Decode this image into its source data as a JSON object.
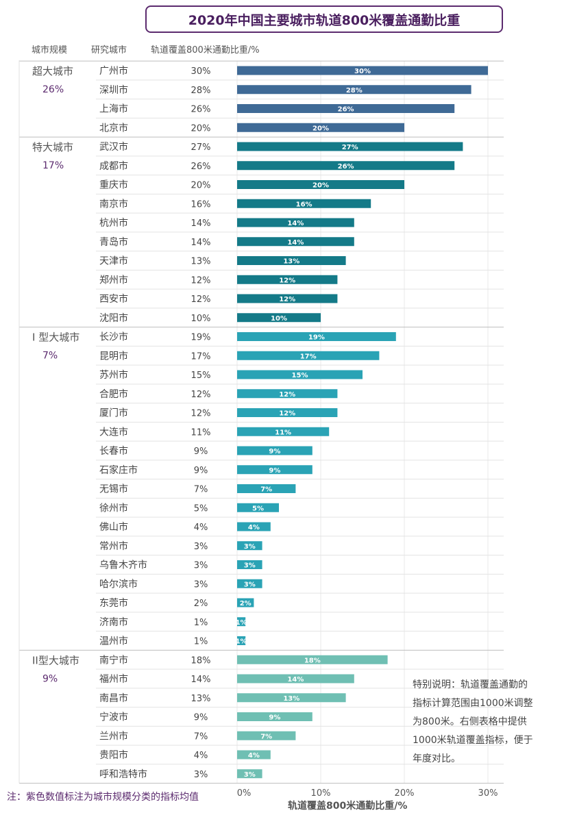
{
  "chart_data": {
    "type": "bar",
    "orientation": "horizontal",
    "title": "2020年中国主要城市轨道800米覆盖通勤比重",
    "headers": {
      "tier": "城市规模",
      "city": "研究城市",
      "value": "轨道覆盖800米通勤比重/%"
    },
    "xlabel": "轨道覆盖800米通勤比重/%",
    "xlim": [
      0,
      30
    ],
    "x_ticks": [
      "0%",
      "10%",
      "20%",
      "30%"
    ],
    "x_tick_values": [
      0,
      10,
      20,
      30
    ],
    "groups": [
      {
        "name": "超大城市",
        "avg": "26%",
        "color": "#3f6a96",
        "cities": [
          {
            "name": "广州市",
            "value": 30,
            "label": "30%"
          },
          {
            "name": "深圳市",
            "value": 28,
            "label": "28%"
          },
          {
            "name": "上海市",
            "value": 26,
            "label": "26%"
          },
          {
            "name": "北京市",
            "value": 20,
            "label": "20%"
          }
        ]
      },
      {
        "name": "特大城市",
        "avg": "17%",
        "color": "#147a88",
        "cities": [
          {
            "name": "武汉市",
            "value": 27,
            "label": "27%"
          },
          {
            "name": "成都市",
            "value": 26,
            "label": "26%"
          },
          {
            "name": "重庆市",
            "value": 20,
            "label": "20%"
          },
          {
            "name": "南京市",
            "value": 16,
            "label": "16%"
          },
          {
            "name": "杭州市",
            "value": 14,
            "label": "14%"
          },
          {
            "name": "青岛市",
            "value": 14,
            "label": "14%"
          },
          {
            "name": "天津市",
            "value": 13,
            "label": "13%"
          },
          {
            "name": "郑州市",
            "value": 12,
            "label": "12%"
          },
          {
            "name": "西安市",
            "value": 12,
            "label": "12%"
          },
          {
            "name": "沈阳市",
            "value": 10,
            "label": "10%"
          }
        ]
      },
      {
        "name": "I 型大城市",
        "avg": "7%",
        "color": "#2aa3b5",
        "cities": [
          {
            "name": "长沙市",
            "value": 19,
            "label": "19%"
          },
          {
            "name": "昆明市",
            "value": 17,
            "label": "17%"
          },
          {
            "name": "苏州市",
            "value": 15,
            "label": "15%"
          },
          {
            "name": "合肥市",
            "value": 12,
            "label": "12%"
          },
          {
            "name": "厦门市",
            "value": 12,
            "label": "12%"
          },
          {
            "name": "大连市",
            "value": 11,
            "label": "11%"
          },
          {
            "name": "长春市",
            "value": 9,
            "label": "9%"
          },
          {
            "name": "石家庄市",
            "value": 9,
            "label": "9%"
          },
          {
            "name": "无锡市",
            "value": 7,
            "label": "7%"
          },
          {
            "name": "徐州市",
            "value": 5,
            "label": "5%"
          },
          {
            "name": "佛山市",
            "value": 4,
            "label": "4%"
          },
          {
            "name": "常州市",
            "value": 3,
            "label": "3%"
          },
          {
            "name": "乌鲁木齐市",
            "value": 3,
            "label": "3%"
          },
          {
            "name": "哈尔滨市",
            "value": 3,
            "label": "3%"
          },
          {
            "name": "东莞市",
            "value": 2,
            "label": "2%"
          },
          {
            "name": "济南市",
            "value": 1,
            "label": "1%"
          },
          {
            "name": "温州市",
            "value": 1,
            "label": "1%"
          }
        ]
      },
      {
        "name": "II型大城市",
        "avg": "9%",
        "color": "#6fbfb3",
        "cities": [
          {
            "name": "南宁市",
            "value": 18,
            "label": "18%"
          },
          {
            "name": "福州市",
            "value": 14,
            "label": "14%"
          },
          {
            "name": "南昌市",
            "value": 13,
            "label": "13%"
          },
          {
            "name": "宁波市",
            "value": 9,
            "label": "9%"
          },
          {
            "name": "兰州市",
            "value": 7,
            "label": "7%"
          },
          {
            "name": "贵阳市",
            "value": 4,
            "label": "4%"
          },
          {
            "name": "呼和浩特市",
            "value": 3,
            "label": "3%"
          }
        ]
      }
    ],
    "avg_color": "#5b2a6e"
  },
  "note": {
    "lines": [
      "特别说明：轨道覆盖通勤的",
      "指标计算范围由1000米调整",
      "为800米。右侧表格中提供",
      "1000米轨道覆盖指标，便于",
      "年度对比。"
    ]
  },
  "footnote": "注：紫色数值标注为城市规模分类的指标均值"
}
